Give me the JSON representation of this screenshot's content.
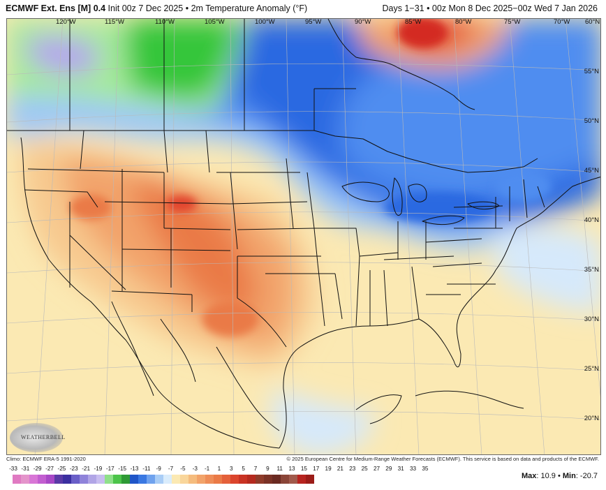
{
  "header": {
    "model": "ECMWF Ext. Ens [M] 0.4",
    "init": " Init 00z 7 Dec 2025 • 2m Temperature Anomaly (°F)",
    "days": "Days 1−31 • 00z Mon 8 Dec 2025−00z Wed 7 Jan 2026"
  },
  "map": {
    "lon_labels": [
      "120°W",
      "115°W",
      "110°W",
      "105°W",
      "100°W",
      "95°W",
      "90°W",
      "85°W",
      "80°W",
      "75°W",
      "70°W",
      "60°N"
    ],
    "lat_labels": [
      "55°N",
      "50°N",
      "45°N",
      "40°N",
      "35°N",
      "30°N",
      "25°N",
      "20°N"
    ],
    "colors": {
      "deep_purple": "#8a6fd8",
      "lavender": "#b6a4ee",
      "bright_green": "#35c63a",
      "light_green": "#a6ea9c",
      "blue": "#2b69e1",
      "mid_blue": "#4f8df0",
      "light_blue": "#9ec7f7",
      "pale_blue": "#d6e9fb",
      "pale_yellow": "#fbe9b3",
      "light_orange": "#f7c98f",
      "orange": "#f2a36a",
      "deep_orange": "#ea7a47",
      "red_orange": "#e2452f",
      "red": "#d42a20"
    }
  },
  "logo": {
    "text": "WEATHERBELL"
  },
  "footer": {
    "left": "Climo: ECMWF ERA-5 1991-2020",
    "right": "© 2025 European Centre for Medium-Range Weather Forecasts (ECMWF). This service is based on data and products of the ECMWF."
  },
  "colorbar": {
    "labels": [
      "-33",
      "-31",
      "-29",
      "-27",
      "-25",
      "-23",
      "-21",
      "-19",
      "-17",
      "-15",
      "-13",
      "-11",
      "-9",
      "-7",
      "-5",
      "-3",
      "-1",
      "1",
      "3",
      "5",
      "7",
      "9",
      "11",
      "13",
      "15",
      "17",
      "19",
      "21",
      "23",
      "25",
      "27",
      "29",
      "31",
      "33",
      "35"
    ],
    "colors": [
      "#e07ac2",
      "#e494cb",
      "#d876d6",
      "#c25ed0",
      "#a848c6",
      "#5a3aa6",
      "#3b2fa0",
      "#6a5fc8",
      "#8f83da",
      "#b1a5e6",
      "#c8bdf0",
      "#8fe08a",
      "#4cc44a",
      "#2e9a35",
      "#1f55c8",
      "#3a78e2",
      "#6fa2ee",
      "#a9cdf6",
      "#d9ecfc",
      "#fbe9b3",
      "#f9d69b",
      "#f5bc7e",
      "#f2a36a",
      "#ee8d58",
      "#ea7a47",
      "#e4603a",
      "#db452d",
      "#c93324",
      "#b52a1f",
      "#8f3b2a",
      "#7a3226",
      "#6a2a22",
      "#8a4538",
      "#a15a4c",
      "#b7241f",
      "#9b1c18"
    ]
  },
  "stats": {
    "max_label": "Max",
    "max_value": ": 10.9",
    "sep": " • ",
    "min_label": "Min",
    "min_value": ": -20.7"
  }
}
